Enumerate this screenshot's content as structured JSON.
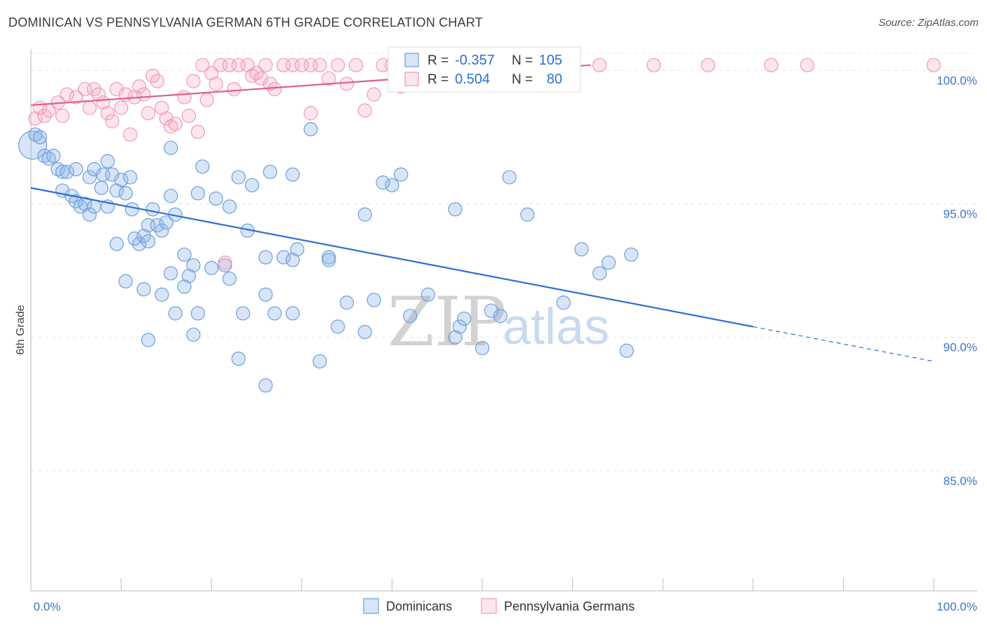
{
  "header": {
    "title": "DOMINICAN VS PENNSYLVANIA GERMAN 6TH GRADE CORRELATION CHART",
    "source": "Source: ZipAtlas.com"
  },
  "watermark": {
    "zip": "ZIP",
    "atlas": "atlas"
  },
  "chart_data": {
    "type": "scatter",
    "title": "DOMINICAN VS PENNSYLVANIA GERMAN 6TH GRADE CORRELATION CHART",
    "xlabel": "",
    "ylabel": "6th Grade",
    "xlim": [
      0,
      100
    ],
    "ylim": [
      80.5,
      100.8
    ],
    "x_tick_labels": [
      "0.0%",
      "100.0%"
    ],
    "y_ticks": [
      {
        "value": 100,
        "label": "100.0%"
      },
      {
        "value": 95,
        "label": "95.0%"
      },
      {
        "value": 90,
        "label": "90.0%"
      },
      {
        "value": 85,
        "label": "85.0%"
      }
    ],
    "grid": true,
    "legend_position": "bottom-center",
    "stats": [
      {
        "series": "Dominicans",
        "r_label": "R =",
        "r_value": "-0.357",
        "n_label": "N =",
        "n_value": "105",
        "color": "#6f9fdc"
      },
      {
        "series": "Pennsylvania Germans",
        "r_label": "R =",
        "r_value": "0.504",
        "n_label": "N =",
        "n_value": "80",
        "color": "#f09bb5"
      }
    ],
    "series": [
      {
        "name": "Dominicans",
        "color": "#6f9fdc",
        "fill": "rgba(140,180,232,0.35)",
        "trend": {
          "x0": 0,
          "y0": 95.6,
          "x1": 80,
          "y1": 90.4,
          "dash_to": 100,
          "dash_y": 89.1,
          "color": "#2e6fd2"
        },
        "points": [
          [
            0.2,
            97.2
          ],
          [
            0.5,
            97.6
          ],
          [
            1,
            97.5
          ],
          [
            1.5,
            96.8
          ],
          [
            2,
            96.7
          ],
          [
            2.5,
            96.8
          ],
          [
            3,
            96.3
          ],
          [
            3.5,
            96.2
          ],
          [
            4,
            96.2
          ],
          [
            5,
            96.3
          ],
          [
            6.5,
            96.0
          ],
          [
            7,
            96.3
          ],
          [
            8,
            96.1
          ],
          [
            8.5,
            96.6
          ],
          [
            9,
            96.1
          ],
          [
            10,
            95.9
          ],
          [
            11,
            96.0
          ],
          [
            3.5,
            95.5
          ],
          [
            4.5,
            95.3
          ],
          [
            5,
            95.1
          ],
          [
            5.5,
            94.9
          ],
          [
            6,
            95.0
          ],
          [
            6.5,
            94.6
          ],
          [
            7,
            94.9
          ],
          [
            7.8,
            95.6
          ],
          [
            8.5,
            94.9
          ],
          [
            9.5,
            95.5
          ],
          [
            10.5,
            95.4
          ],
          [
            11.2,
            94.8
          ],
          [
            13.5,
            94.8
          ],
          [
            15.5,
            95.3
          ],
          [
            18.5,
            95.4
          ],
          [
            20.5,
            95.2
          ],
          [
            22,
            94.9
          ],
          [
            16,
            94.6
          ],
          [
            13,
            94.2
          ],
          [
            14,
            94.2
          ],
          [
            14.5,
            94.0
          ],
          [
            15,
            94.3
          ],
          [
            11.5,
            93.7
          ],
          [
            12,
            93.5
          ],
          [
            12.5,
            93.8
          ],
          [
            13,
            93.6
          ],
          [
            9.5,
            93.5
          ],
          [
            24,
            94.0
          ],
          [
            26,
            93.0
          ],
          [
            28,
            93.0
          ],
          [
            29.5,
            93.3
          ],
          [
            33,
            93.0
          ],
          [
            37,
            94.6
          ],
          [
            29,
            92.9
          ],
          [
            33,
            92.9
          ],
          [
            17,
            93.1
          ],
          [
            18,
            92.7
          ],
          [
            20,
            92.6
          ],
          [
            21.5,
            92.7
          ],
          [
            22,
            92.2
          ],
          [
            15.5,
            92.4
          ],
          [
            17.5,
            92.3
          ],
          [
            26,
            91.6
          ],
          [
            10.5,
            92.1
          ],
          [
            12.5,
            91.8
          ],
          [
            14.5,
            91.6
          ],
          [
            17,
            91.9
          ],
          [
            38,
            91.4
          ],
          [
            44,
            91.6
          ],
          [
            27,
            90.9
          ],
          [
            29,
            90.9
          ],
          [
            35,
            91.3
          ],
          [
            42,
            90.8
          ],
          [
            16,
            90.9
          ],
          [
            18.5,
            90.9
          ],
          [
            23.5,
            90.9
          ],
          [
            34,
            90.4
          ],
          [
            47.5,
            90.4
          ],
          [
            48,
            90.7
          ],
          [
            51,
            91.0
          ],
          [
            52,
            90.8
          ],
          [
            47,
            90.0
          ],
          [
            50,
            89.6
          ],
          [
            66,
            89.5
          ],
          [
            59,
            91.3
          ],
          [
            64,
            92.8
          ],
          [
            66.5,
            93.1
          ],
          [
            63,
            92.4
          ],
          [
            61,
            93.3
          ],
          [
            53,
            96.0
          ],
          [
            55,
            94.6
          ],
          [
            47,
            94.8
          ],
          [
            41,
            96.1
          ],
          [
            40,
            95.7
          ],
          [
            39,
            95.8
          ],
          [
            29,
            96.1
          ],
          [
            23,
            96.0
          ],
          [
            19,
            96.4
          ],
          [
            26.5,
            96.2
          ],
          [
            24.5,
            95.7
          ],
          [
            37,
            90.2
          ],
          [
            32,
            89.1
          ],
          [
            26,
            88.2
          ],
          [
            23,
            89.2
          ],
          [
            18,
            90.1
          ],
          [
            13,
            89.9
          ],
          [
            31,
            97.8
          ],
          [
            15.5,
            97.1
          ]
        ]
      },
      {
        "name": "Pennsylvania Germans",
        "color": "#f09bb5",
        "fill": "rgba(244,168,192,0.30)",
        "trend": {
          "x0": 0,
          "y0": 98.7,
          "x1": 62,
          "y1": 100.2,
          "color": "#e0608a"
        },
        "points": [
          [
            0.5,
            98.2
          ],
          [
            1,
            98.6
          ],
          [
            1.5,
            98.3
          ],
          [
            2,
            98.5
          ],
          [
            3,
            98.8
          ],
          [
            3.5,
            98.3
          ],
          [
            4,
            99.1
          ],
          [
            5,
            99.0
          ],
          [
            6,
            99.3
          ],
          [
            6.5,
            98.6
          ],
          [
            7,
            99.3
          ],
          [
            7.5,
            99.1
          ],
          [
            8,
            98.8
          ],
          [
            8.5,
            98.4
          ],
          [
            9,
            98.1
          ],
          [
            9.5,
            99.3
          ],
          [
            10,
            98.6
          ],
          [
            10.5,
            99.1
          ],
          [
            11,
            97.6
          ],
          [
            11.5,
            99.0
          ],
          [
            12,
            99.4
          ],
          [
            12.5,
            99.1
          ],
          [
            13,
            98.4
          ],
          [
            13.5,
            99.8
          ],
          [
            14,
            99.6
          ],
          [
            14.5,
            98.6
          ],
          [
            15,
            98.2
          ],
          [
            15.5,
            97.9
          ],
          [
            16,
            98.0
          ],
          [
            17,
            99.0
          ],
          [
            17.5,
            98.3
          ],
          [
            18,
            99.6
          ],
          [
            18.5,
            97.7
          ],
          [
            19,
            100.2
          ],
          [
            19.5,
            98.9
          ],
          [
            20,
            99.9
          ],
          [
            20.5,
            99.5
          ],
          [
            21,
            100.2
          ],
          [
            22,
            100.2
          ],
          [
            22.5,
            99.3
          ],
          [
            23,
            100.2
          ],
          [
            24,
            100.2
          ],
          [
            24.5,
            99.8
          ],
          [
            25,
            99.9
          ],
          [
            25.5,
            99.7
          ],
          [
            26,
            100.2
          ],
          [
            26.5,
            99.5
          ],
          [
            27,
            99.3
          ],
          [
            28,
            100.2
          ],
          [
            29,
            100.2
          ],
          [
            30,
            100.2
          ],
          [
            31,
            100.2
          ],
          [
            32,
            100.2
          ],
          [
            33,
            99.7
          ],
          [
            34,
            100.2
          ],
          [
            35,
            99.5
          ],
          [
            36,
            100.2
          ],
          [
            37,
            98.5
          ],
          [
            38,
            99.1
          ],
          [
            39,
            100.2
          ],
          [
            40,
            100.2
          ],
          [
            41,
            99.4
          ],
          [
            42,
            100.2
          ],
          [
            44,
            100.2
          ],
          [
            46,
            100.2
          ],
          [
            48,
            100.2
          ],
          [
            50,
            100.2
          ],
          [
            52,
            100.2
          ],
          [
            54,
            100.2
          ],
          [
            56,
            100.2
          ],
          [
            58,
            100.2
          ],
          [
            60,
            100.2
          ],
          [
            63,
            100.2
          ],
          [
            69,
            100.2
          ],
          [
            75,
            100.2
          ],
          [
            82,
            100.2
          ],
          [
            86,
            100.2
          ],
          [
            100,
            100.2
          ],
          [
            21.5,
            92.8
          ],
          [
            31,
            98.4
          ]
        ]
      }
    ]
  }
}
